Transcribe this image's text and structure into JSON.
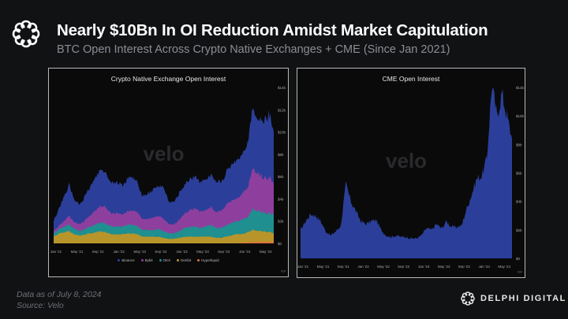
{
  "header": {
    "title": "Nearly $10Bn In OI Reduction Amidst Market Capitulation",
    "subtitle": "BTC Open Interest Across Crypto Native Exchanges + CME (Since Jan 2021)"
  },
  "footer": {
    "date_note": "Data as of July 8, 2024",
    "source_note": "Source: Velo",
    "brand": "DELPHI DIGITAL"
  },
  "watermark": "velo",
  "chart_data": [
    {
      "type": "area",
      "stacked": true,
      "title": "Crypto Native Exchange Open Interest",
      "xlabel": "",
      "ylabel": "",
      "y_axis_side": "right",
      "ylim": [
        0,
        14
      ],
      "y_unit": "$b",
      "y_ticks": [
        "$0",
        "$2b",
        "$4b",
        "$6b",
        "$8b",
        "$10b",
        "$12b",
        "$14b"
      ],
      "x_ticks": [
        "Jan '21",
        "May '21",
        "Sep '21",
        "Jan '22",
        "May '22",
        "Sep '22",
        "Jan '23",
        "May '23",
        "Sep '23",
        "Jan '24",
        "May '24"
      ],
      "x_range": [
        "Jan 2021",
        "Jul 2024"
      ],
      "legend_position": "bottom",
      "x": [
        "Jan 21",
        "Feb 21",
        "Mar 21",
        "Apr 21",
        "May 21",
        "Jun 21",
        "Jul 21",
        "Aug 21",
        "Sep 21",
        "Oct 21",
        "Nov 21",
        "Dec 21",
        "Jan 22",
        "Feb 22",
        "Mar 22",
        "Apr 22",
        "May 22",
        "Jun 22",
        "Jul 22",
        "Aug 22",
        "Sep 22",
        "Oct 22",
        "Nov 22",
        "Dec 22",
        "Jan 23",
        "Feb 23",
        "Mar 23",
        "Apr 23",
        "May 23",
        "Jun 23",
        "Jul 23",
        "Aug 23",
        "Sep 23",
        "Oct 23",
        "Nov 23",
        "Dec 23",
        "Jan 24",
        "Feb 24",
        "Mar 24",
        "Apr 24",
        "May 24",
        "Jun 24",
        "Jul 24"
      ],
      "series": [
        {
          "name": "Hyperliquid",
          "color": "#e0733a",
          "values": [
            0,
            0,
            0,
            0,
            0,
            0,
            0,
            0,
            0,
            0,
            0,
            0,
            0,
            0,
            0,
            0,
            0,
            0,
            0,
            0,
            0,
            0,
            0,
            0,
            0,
            0,
            0,
            0,
            0,
            0,
            0,
            0,
            0,
            0,
            0,
            0.02,
            0.05,
            0.08,
            0.12,
            0.15,
            0.15,
            0.15,
            0.12
          ]
        },
        {
          "name": "Deribit",
          "color": "#b8952a",
          "values": [
            0.6,
            0.9,
            1.0,
            1.1,
            0.8,
            0.7,
            0.8,
            0.9,
            1.0,
            1.1,
            1.0,
            0.8,
            0.8,
            0.8,
            0.9,
            0.9,
            0.8,
            0.6,
            0.6,
            0.6,
            0.6,
            0.5,
            0.4,
            0.4,
            0.5,
            0.6,
            0.6,
            0.6,
            0.6,
            0.6,
            0.6,
            0.5,
            0.5,
            0.6,
            0.7,
            0.8,
            0.8,
            0.9,
            1.1,
            1.0,
            0.9,
            0.9,
            0.8
          ]
        },
        {
          "name": "OKX",
          "color": "#1f8f8f",
          "values": [
            0.3,
            0.4,
            0.5,
            0.6,
            0.5,
            0.4,
            0.5,
            0.6,
            0.7,
            0.8,
            0.8,
            0.7,
            0.7,
            0.7,
            0.8,
            0.8,
            0.7,
            0.6,
            0.6,
            0.6,
            0.7,
            0.6,
            0.5,
            0.5,
            0.6,
            0.8,
            0.9,
            0.9,
            0.8,
            0.9,
            1.0,
            0.9,
            0.9,
            1.0,
            1.1,
            1.2,
            1.3,
            1.4,
            1.8,
            1.8,
            1.7,
            1.7,
            1.6
          ]
        },
        {
          "name": "Bybit",
          "color": "#8e3f9e",
          "values": [
            0.2,
            0.3,
            0.5,
            0.8,
            0.6,
            0.6,
            0.8,
            1.0,
            1.3,
            1.5,
            1.4,
            1.2,
            1.2,
            1.1,
            1.2,
            1.3,
            1.2,
            1.0,
            1.0,
            1.1,
            1.2,
            1.1,
            0.8,
            0.8,
            1.0,
            1.3,
            1.5,
            1.6,
            1.5,
            1.5,
            1.6,
            1.4,
            1.5,
            1.8,
            2.0,
            2.1,
            2.3,
            2.6,
            3.6,
            3.4,
            3.1,
            3.3,
            2.8
          ]
        },
        {
          "name": "Binance",
          "color": "#2b3f9a",
          "values": [
            0.9,
            1.5,
            2.2,
            2.8,
            2.0,
            1.8,
            2.2,
            2.6,
            3.0,
            3.2,
            3.1,
            2.8,
            2.8,
            2.6,
            2.9,
            3.0,
            2.6,
            2.1,
            2.3,
            2.5,
            2.7,
            2.8,
            2.0,
            2.0,
            2.4,
            2.6,
            2.8,
            2.9,
            2.7,
            2.7,
            2.8,
            2.6,
            2.6,
            2.9,
            3.3,
            3.5,
            3.6,
            4.0,
            5.6,
            4.8,
            5.2,
            5.8,
            4.7
          ]
        }
      ]
    },
    {
      "type": "area",
      "title": "CME Open Interest",
      "xlabel": "",
      "ylabel": "",
      "y_axis_side": "right",
      "ylim": [
        0,
        12
      ],
      "y_unit": "$b",
      "y_ticks": [
        "$0",
        "$2b",
        "$4b",
        "$6b",
        "$8b",
        "$10b",
        "$12b"
      ],
      "x_ticks": [
        "Jan '21",
        "May '21",
        "Sep '21",
        "Jan '22",
        "May '22",
        "Sep '22",
        "Jan '23",
        "May '23",
        "Sep '23",
        "Jan '24",
        "May '24"
      ],
      "x_range": [
        "Jan 2021",
        "Jul 2024"
      ],
      "x": [
        "Jan 21",
        "Feb 21",
        "Mar 21",
        "Apr 21",
        "May 21",
        "Jun 21",
        "Jul 21",
        "Aug 21",
        "Sep 21",
        "Oct 21",
        "Nov 21",
        "Dec 21",
        "Jan 22",
        "Feb 22",
        "Mar 22",
        "Apr 22",
        "May 22",
        "Jun 22",
        "Jul 22",
        "Aug 22",
        "Sep 22",
        "Oct 22",
        "Nov 22",
        "Dec 22",
        "Jan 23",
        "Feb 23",
        "Mar 23",
        "Apr 23",
        "May 23",
        "Jun 23",
        "Jul 23",
        "Aug 23",
        "Sep 23",
        "Oct 23",
        "Nov 23",
        "Dec 23",
        "Jan 24",
        "Feb 24",
        "Mar 24",
        "Apr 24",
        "May 24",
        "Jun 24",
        "Jul 24"
      ],
      "series": [
        {
          "name": "CME",
          "color": "#2b3f9a",
          "values": [
            2.0,
            2.6,
            3.1,
            3.0,
            2.6,
            1.9,
            1.6,
            1.9,
            2.3,
            5.2,
            4.0,
            3.3,
            2.6,
            2.4,
            2.6,
            2.7,
            2.0,
            1.6,
            1.5,
            1.6,
            1.5,
            1.5,
            1.4,
            1.4,
            1.6,
            2.1,
            2.0,
            2.4,
            2.1,
            2.6,
            2.2,
            2.2,
            2.3,
            3.5,
            4.5,
            5.6,
            5.8,
            7.0,
            12.2,
            10.0,
            11.6,
            10.0,
            8.4
          ]
        }
      ]
    }
  ]
}
